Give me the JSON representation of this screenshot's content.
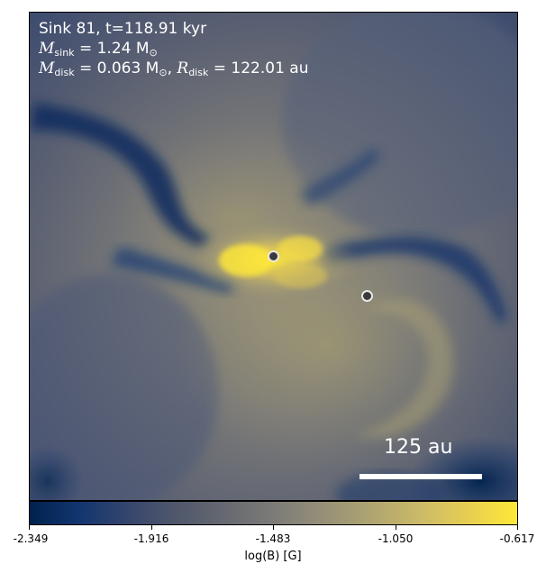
{
  "panel": {
    "title_line": "Sink 81, t=118.91 kyr",
    "sink_mass_label": "M",
    "sink_mass_sub": "sink",
    "sink_mass_value": " = 1.24 M",
    "sink_mass_sun": "⊙",
    "disk_mass_label": "M",
    "disk_mass_sub": "disk",
    "disk_mass_value": " = 0.063 M",
    "disk_mass_sun": "⊙",
    "disk_radius_label": "R",
    "disk_radius_sub": "disk",
    "disk_radius_value": " = 122.01 au",
    "separator": ", "
  },
  "scale_bar": {
    "label": "125 au"
  },
  "colorbar": {
    "label": "log(B) [G]",
    "ticks": [
      "-2.349",
      "-1.916",
      "-1.483",
      "-1.050",
      "-0.617"
    ],
    "colormap": "cividis",
    "colors": {
      "low": "#00224e",
      "mid": "#7c7b78",
      "high": "#fee838"
    }
  },
  "sinks": [
    {
      "name": "primary-sink"
    },
    {
      "name": "secondary-sink"
    }
  ]
}
